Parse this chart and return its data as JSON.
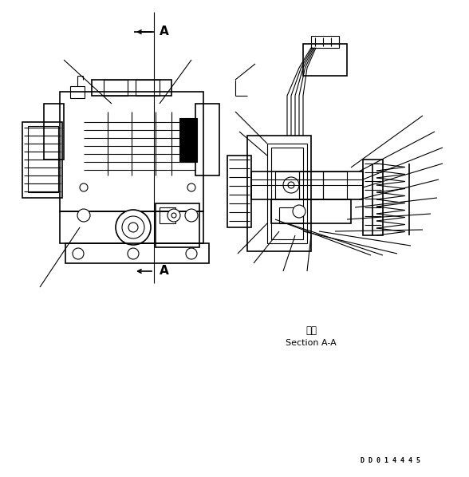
{
  "bg_color": "#ffffff",
  "line_color": "#000000",
  "fig_width": 5.88,
  "fig_height": 5.98,
  "dpi": 100,
  "section_label_jp": "断面",
  "section_label_en": "Section A-A",
  "watermark": "D D 0 1 4 4 4 5"
}
